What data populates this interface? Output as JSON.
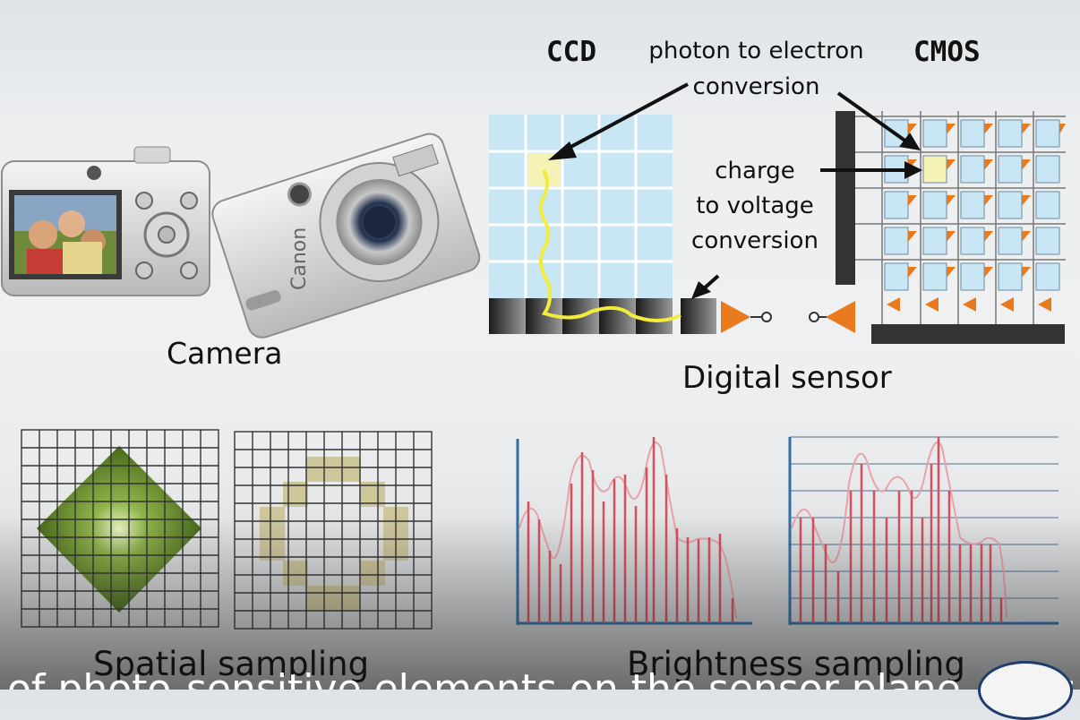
{
  "labels": {
    "ccd": "CCD",
    "cmos": "CMOS",
    "photon_conversion": [
      "photon to electron",
      "conversion"
    ],
    "charge_conversion": [
      "charge",
      "to voltage",
      "conversion"
    ],
    "camera": "Camera",
    "digital_sensor": "Digital sensor",
    "spatial_sampling": "Spatial sampling",
    "brightness_sampling": "Brightness sampling"
  },
  "subtitle": "of photo-sensitive elements on the sensor plane, which",
  "colors": {
    "grid_blue": "#c9e6f5",
    "highlight": "#f5f2b5",
    "triangle": "#e87a1c",
    "green": "#4e7a1e",
    "khaki": "#cfc79c",
    "red": "#d8505c",
    "blue_axis": "#2f6da8"
  }
}
